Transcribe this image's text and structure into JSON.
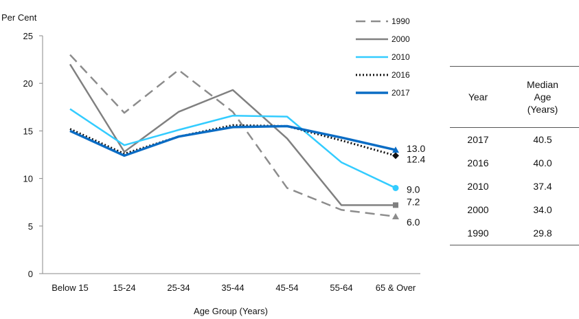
{
  "chart_data": {
    "type": "line",
    "ylabel": "Per Cent",
    "xlabel": "Age Group (Years)",
    "ylim": [
      0,
      25
    ],
    "yticks": [
      0,
      5,
      10,
      15,
      20,
      25
    ],
    "categories": [
      "Below 15",
      "15-24",
      "25-34",
      "35-44",
      "45-54",
      "55-64",
      "65 & Over"
    ],
    "grid": false,
    "legend_position": "top-right",
    "series": [
      {
        "name": "1990",
        "color": "#8c8c8c",
        "style": "dashed",
        "marker": "triangle",
        "values": [
          23.0,
          16.9,
          21.4,
          17.0,
          9.0,
          6.7,
          6.0
        ],
        "end_label": "6.0"
      },
      {
        "name": "2000",
        "color": "#808080",
        "style": "solid",
        "marker": "square",
        "values": [
          22.0,
          12.8,
          17.0,
          19.3,
          14.2,
          7.2,
          7.2
        ],
        "end_label": "7.2"
      },
      {
        "name": "2010",
        "color": "#33ccff",
        "style": "solid",
        "marker": "circle",
        "values": [
          17.3,
          13.5,
          15.1,
          16.6,
          16.5,
          11.7,
          9.0
        ],
        "end_label": "9.0"
      },
      {
        "name": "2016",
        "color": "#111111",
        "style": "dotted",
        "marker": "diamond",
        "values": [
          15.2,
          12.6,
          14.4,
          15.6,
          15.5,
          14.0,
          12.4
        ],
        "end_label": "12.4"
      },
      {
        "name": "2017",
        "color": "#0a6cc4",
        "style": "solid",
        "marker": "triangle",
        "values": [
          15.0,
          12.4,
          14.4,
          15.4,
          15.5,
          14.3,
          13.0
        ],
        "end_label": "13.0"
      }
    ]
  },
  "table": {
    "headers": [
      "Year",
      "Median Age (Years)"
    ],
    "rows": [
      [
        "2017",
        "40.5"
      ],
      [
        "2016",
        "40.0"
      ],
      [
        "2010",
        "37.4"
      ],
      [
        "2000",
        "34.0"
      ],
      [
        "1990",
        "29.8"
      ]
    ]
  }
}
